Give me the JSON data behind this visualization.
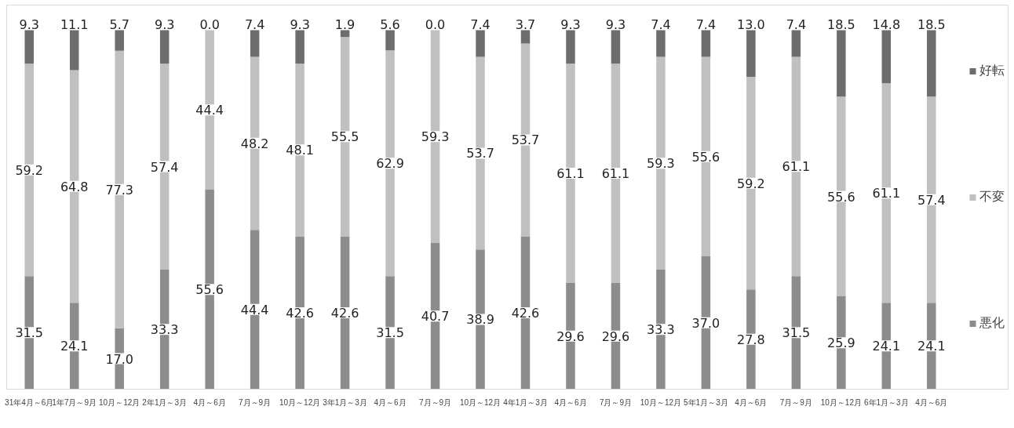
{
  "chart_data": {
    "type": "bar",
    "stacked": true,
    "legend": "right",
    "grid": false,
    "categories": [
      "31年4月～6月",
      "1年7月～9月",
      "10月～12月",
      "2年1月～3月",
      "4月～6月",
      "7月～9月",
      "10月～12月",
      "3年1月～3月",
      "4月～6月",
      "7月～9月",
      "10月～12月",
      "4年1月～3月",
      "4月～6月",
      "7月～9月",
      "10月～12月",
      "5年1月～3月",
      "4月～6月",
      "7月～9月",
      "10月～12月",
      "6年1月～3月",
      "4月～6月"
    ],
    "series": [
      {
        "name": "悪化",
        "color": "#8c8c8c",
        "values": [
          31.5,
          24.1,
          17.0,
          33.3,
          55.6,
          44.4,
          42.6,
          42.6,
          31.5,
          40.7,
          38.9,
          42.6,
          29.6,
          29.6,
          33.3,
          37.0,
          27.8,
          31.5,
          25.9,
          24.1,
          24.1
        ],
        "value_labels": [
          "31.5",
          "24.1",
          "17.0",
          "33.3",
          "55.6",
          "44.4",
          "42.6",
          "42.6",
          "31.5",
          "40.7",
          "38.9",
          "42.6",
          "29.6",
          "29.6",
          "33.3",
          "37.0",
          "27.8",
          "31.5",
          "25.9",
          "24.1",
          "24.1"
        ]
      },
      {
        "name": "不変",
        "color": "#c0c0c0",
        "values": [
          59.2,
          64.8,
          77.3,
          57.4,
          44.4,
          48.2,
          48.1,
          55.5,
          62.9,
          59.3,
          53.7,
          53.7,
          61.1,
          61.1,
          59.3,
          55.6,
          59.2,
          61.1,
          55.6,
          61.1,
          57.4
        ],
        "value_labels": [
          "59.2",
          "64.8",
          "77.3",
          "57.4",
          "44.4",
          "48.2",
          "48.1",
          "55.5",
          "62.9",
          "59.3",
          "53.7",
          "53.7",
          "61.1",
          "61.1",
          "59.3",
          "55.6",
          "59.2",
          "61.1",
          "55.6",
          "61.1",
          "57.4"
        ]
      },
      {
        "name": "好転",
        "color": "#6d6d6d",
        "values": [
          9.3,
          11.1,
          5.7,
          9.3,
          0.0,
          7.4,
          9.3,
          1.9,
          5.6,
          0.0,
          7.4,
          3.7,
          9.3,
          9.3,
          7.4,
          7.4,
          13.0,
          7.4,
          18.5,
          14.8,
          18.5
        ],
        "value_labels": [
          "9.3",
          "11.1",
          "5.7",
          "9.3",
          "0.0",
          "7.4",
          "9.3",
          "1.9",
          "5.6",
          "0.0",
          "7.4",
          "3.7",
          "9.3",
          "9.3",
          "7.4",
          "7.4",
          "13.0",
          "7.4",
          "18.5",
          "14.8",
          "18.5"
        ]
      }
    ]
  }
}
